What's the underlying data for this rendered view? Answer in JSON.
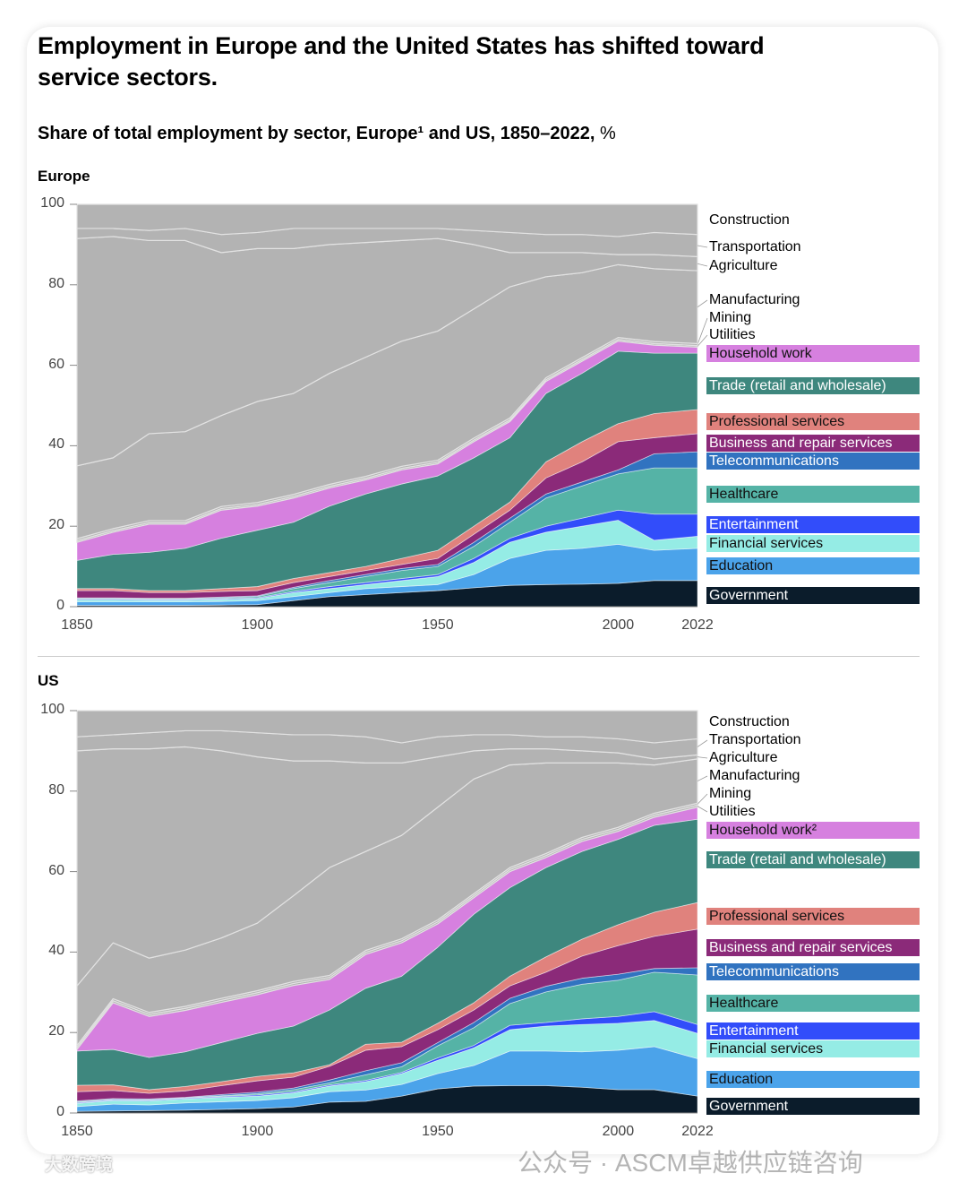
{
  "header": {
    "title": "Employment in Europe and the United States has shifted toward service sectors.",
    "subtitle": "Share of total employment by sector, Europe¹ and US, 1850–2022,",
    "unit": "%"
  },
  "watermarks": {
    "wechat": "公众号 · ASCM卓越供应链咨询",
    "corner": "大数跨境"
  },
  "chart_data": [
    {
      "type": "area",
      "stacked": true,
      "title": "Europe",
      "xlabel": "",
      "ylabel": "%",
      "ylim": [
        0,
        100
      ],
      "yticks": [
        "0",
        "20",
        "40",
        "60",
        "80",
        "100"
      ],
      "xticks": [
        "1850",
        "1900",
        "1950",
        "2000",
        "2022"
      ],
      "x": [
        1850,
        1860,
        1870,
        1880,
        1890,
        1900,
        1910,
        1920,
        1930,
        1940,
        1950,
        1960,
        1970,
        1980,
        1990,
        2000,
        2010,
        2022
      ],
      "value_mode": "cumulative_top",
      "series": [
        {
          "name": "Government",
          "color": "#0b1c2b",
          "cumulative_top": [
            0.3,
            0.3,
            0.3,
            0.3,
            0.4,
            0.5,
            1.5,
            2.5,
            3,
            3.5,
            4,
            4.7,
            5.3,
            5.5,
            5.6,
            5.8,
            6.5,
            6.5
          ]
        },
        {
          "name": "Education",
          "color": "#4ba3ea",
          "cumulative_top": [
            1.2,
            1.2,
            1.2,
            1.2,
            1.3,
            1.5,
            2.5,
            3.5,
            4.5,
            5,
            5.5,
            8,
            12,
            14,
            14.5,
            15.5,
            14,
            14.5
          ]
        },
        {
          "name": "Financial services",
          "color": "#95ece5",
          "cumulative_top": [
            1.7,
            1.7,
            1.6,
            1.6,
            1.8,
            2,
            3.5,
            4.5,
            5.5,
            6.5,
            7.5,
            11,
            16,
            18.5,
            20,
            21.5,
            16.5,
            17.5
          ]
        },
        {
          "name": "Entertainment",
          "color": "#324dfa",
          "cumulative_top": [
            1.9,
            1.9,
            1.8,
            1.8,
            2,
            2.2,
            3.8,
            5,
            6,
            7,
            8,
            12,
            17,
            20,
            22,
            24,
            23,
            23
          ]
        },
        {
          "name": "Healthcare",
          "color": "#55b3a6",
          "cumulative_top": [
            2.1,
            2.1,
            2,
            2,
            2.2,
            2.5,
            4.5,
            6,
            7.5,
            9,
            10,
            15,
            21,
            27,
            30,
            33,
            34.5,
            34.5
          ]
        },
        {
          "name": "Telecommunications",
          "color": "#3173c0",
          "cumulative_top": [
            2.2,
            2.2,
            2.1,
            2.1,
            2.4,
            2.7,
            4.8,
            6.5,
            8,
            9.5,
            10.5,
            16,
            22,
            28,
            31,
            34,
            38,
            38.5
          ]
        },
        {
          "name": "Business and repair services",
          "color": "#8b2a79",
          "cumulative_top": [
            4,
            4,
            3.5,
            3.5,
            3.8,
            4,
            6,
            7.5,
            9,
            10.5,
            12,
            18,
            24,
            32,
            36,
            41,
            42,
            43
          ]
        },
        {
          "name": "Professional services",
          "color": "#e0827d",
          "cumulative_top": [
            4.5,
            4.5,
            4,
            4,
            4.5,
            5,
            7,
            8.5,
            10,
            12,
            14,
            20,
            26,
            36,
            41,
            45.5,
            48,
            49
          ]
        },
        {
          "name": "Trade (retail and wholesale)",
          "color": "#3e877e",
          "cumulative_top": [
            11.5,
            13,
            13.5,
            14.5,
            17,
            19,
            21,
            25,
            28,
            30.5,
            32.5,
            37,
            42,
            53,
            58,
            63.5,
            63,
            63
          ]
        },
        {
          "name": "Household work",
          "color": "#d680df",
          "cumulative_top": [
            16,
            18.5,
            20.5,
            20.5,
            24,
            25,
            27,
            29.5,
            31.5,
            34,
            35.5,
            41,
            46,
            56,
            61,
            66,
            65,
            64.5
          ]
        },
        {
          "name": "Utilities",
          "color": "#b3b3b3",
          "cumulative_top": [
            16.4,
            18.9,
            20.9,
            20.9,
            24.4,
            25.4,
            27.4,
            29.9,
            31.9,
            34.4,
            35.9,
            41.4,
            46.4,
            56.4,
            61.4,
            66.4,
            65.4,
            64.9
          ]
        },
        {
          "name": "Mining",
          "color": "#b3b3b3",
          "cumulative_top": [
            16.9,
            19.4,
            21.4,
            21.4,
            24.9,
            25.9,
            27.9,
            30.4,
            32.4,
            34.9,
            36.4,
            41.9,
            46.9,
            56.9,
            61.9,
            66.9,
            65.9,
            65.4
          ]
        },
        {
          "name": "Manufacturing",
          "color": "#b3b3b3",
          "cumulative_top": [
            35,
            37,
            43,
            43.5,
            47.5,
            51,
            53,
            58,
            62,
            66,
            68.5,
            74,
            79.5,
            82,
            83,
            85,
            84,
            83.5
          ]
        },
        {
          "name": "Agriculture",
          "color": "#b3b3b3",
          "cumulative_top": [
            91.5,
            92,
            91,
            91,
            88,
            89,
            89,
            90,
            90.5,
            91,
            91.5,
            90,
            88,
            88,
            88,
            87.5,
            87.5,
            87
          ]
        },
        {
          "name": "Transportation",
          "color": "#b3b3b3",
          "cumulative_top": [
            94,
            94,
            93.5,
            94,
            92.5,
            93,
            94,
            94,
            94,
            94,
            94,
            93.5,
            93,
            92.5,
            92.5,
            92,
            93,
            92.5
          ]
        },
        {
          "name": "Construction",
          "color": "#b3b3b3",
          "cumulative_top": [
            100,
            100,
            100,
            100,
            100,
            100,
            100,
            100,
            100,
            100,
            100,
            100,
            100,
            100,
            100,
            100,
            100,
            100
          ]
        }
      ]
    },
    {
      "type": "area",
      "stacked": true,
      "title": "US",
      "xlabel": "",
      "ylabel": "%",
      "ylim": [
        0,
        100
      ],
      "yticks": [
        "0",
        "20",
        "40",
        "60",
        "80",
        "100"
      ],
      "xticks": [
        "1850",
        "1900",
        "1950",
        "2000",
        "2022"
      ],
      "x": [
        1850,
        1860,
        1870,
        1880,
        1890,
        1900,
        1910,
        1920,
        1930,
        1940,
        1950,
        1960,
        1970,
        1980,
        1990,
        2000,
        2010,
        2022
      ],
      "value_mode": "cumulative_top",
      "series": [
        {
          "name": "Government",
          "color": "#0b1c2b",
          "cumulative_top": [
            0.4,
            0.5,
            0.6,
            0.7,
            0.9,
            1.1,
            1.5,
            2.7,
            2.9,
            4.2,
            6,
            6.7,
            6.8,
            6.8,
            6.4,
            5.8,
            5.8,
            4.2
          ]
        },
        {
          "name": "Education",
          "color": "#4ba3ea",
          "cumulative_top": [
            1.6,
            2.2,
            2,
            2.5,
            2.8,
            3.1,
            3.8,
            5.3,
            5.7,
            7.1,
            9.8,
            11.8,
            15.4,
            15.4,
            15.2,
            15.6,
            16.5,
            13.5
          ]
        },
        {
          "name": "Financial services",
          "color": "#95ece5",
          "cumulative_top": [
            2.4,
            3.1,
            3,
            3.5,
            3.9,
            4.2,
            5,
            6.7,
            7.8,
            9.8,
            13.1,
            16.2,
            20.7,
            21.6,
            22,
            22.3,
            23,
            19.8
          ]
        },
        {
          "name": "Entertainment",
          "color": "#324dfa",
          "cumulative_top": [
            2.6,
            3.3,
            3.2,
            3.7,
            4.1,
            4.5,
            5.3,
            7,
            8.1,
            10.1,
            13.7,
            16.8,
            21.8,
            22.5,
            23.4,
            24,
            25.2,
            22
          ]
        },
        {
          "name": "Healthcare",
          "color": "#55b3a6",
          "cumulative_top": [
            2.8,
            3.4,
            3.3,
            3.8,
            4.3,
            4.8,
            5.8,
            7.5,
            9.5,
            11.5,
            16.7,
            21.2,
            27.2,
            30.1,
            32,
            33,
            35,
            34.3
          ]
        },
        {
          "name": "Telecommunications",
          "color": "#3173c0",
          "cumulative_top": [
            3,
            3.6,
            3.5,
            3.9,
            4.6,
            5.2,
            6.2,
            8.2,
            10.5,
            12.5,
            17.5,
            22.5,
            28.5,
            31.5,
            33.5,
            34.5,
            35.9,
            36.1
          ]
        },
        {
          "name": "Business and repair services",
          "color": "#8b2a79",
          "cumulative_top": [
            5.3,
            5.6,
            4.9,
            5.5,
            6.8,
            8,
            8.9,
            11.6,
            15.6,
            16.5,
            20.7,
            25.6,
            31.6,
            35,
            39,
            41.6,
            43.9,
            45.7
          ]
        },
        {
          "name": "Professional services",
          "color": "#e0827d",
          "cumulative_top": [
            6.9,
            7,
            5.8,
            6.6,
            7.8,
            9.1,
            10,
            12,
            17.1,
            17.6,
            22.3,
            27.4,
            34,
            38.8,
            43.2,
            46.8,
            49.9,
            52.3
          ]
        },
        {
          "name": "Trade (retail and wholesale)",
          "color": "#3e877e",
          "cumulative_top": [
            15.4,
            15.8,
            13.8,
            15.2,
            17.5,
            19.8,
            21.6,
            25.6,
            31,
            34,
            41.2,
            49.4,
            56,
            61,
            65,
            68,
            71.5,
            73
          ]
        },
        {
          "name": "Household work²",
          "color": "#d680df",
          "cumulative_top": [
            15.8,
            27.4,
            24,
            25.5,
            27.5,
            29.4,
            31.7,
            33.2,
            39.4,
            42.3,
            47,
            53.5,
            60,
            63.5,
            67.5,
            70,
            73.5,
            76
          ]
        },
        {
          "name": "Utilities",
          "color": "#b3b3b3",
          "cumulative_top": [
            16.3,
            27.9,
            24.5,
            26,
            28,
            29.9,
            32.2,
            33.7,
            39.9,
            42.8,
            47.5,
            54,
            60.5,
            64,
            68,
            70.5,
            74,
            76.5
          ]
        },
        {
          "name": "Mining",
          "color": "#b3b3b3",
          "cumulative_top": [
            16.8,
            28.4,
            25,
            26.5,
            28.5,
            30.4,
            32.7,
            34.2,
            40.4,
            43.3,
            48,
            54.5,
            61,
            64.5,
            68.5,
            71,
            74.5,
            77
          ]
        },
        {
          "name": "Manufacturing",
          "color": "#b3b3b3",
          "cumulative_top": [
            31.6,
            42.3,
            38.5,
            40.5,
            43.5,
            47.2,
            54,
            61,
            65,
            69,
            76,
            83,
            86.5,
            87,
            87,
            87,
            86.5,
            88
          ]
        },
        {
          "name": "Agriculture",
          "color": "#b3b3b3",
          "cumulative_top": [
            90,
            90.5,
            90.5,
            91,
            90,
            88.5,
            87.5,
            87.5,
            87,
            87,
            88.5,
            90,
            90.5,
            90.5,
            90,
            89.5,
            88,
            89
          ]
        },
        {
          "name": "Transportation",
          "color": "#b3b3b3",
          "cumulative_top": [
            93.5,
            94,
            94.5,
            95,
            95,
            94.5,
            94,
            94,
            93.5,
            92,
            93.5,
            94,
            94,
            93.5,
            93.5,
            93,
            92,
            93
          ]
        },
        {
          "name": "Construction",
          "color": "#b3b3b3",
          "cumulative_top": [
            100,
            100,
            100,
            100,
            100,
            100,
            100,
            100,
            100,
            100,
            100,
            100,
            100,
            100,
            100,
            100,
            100,
            100
          ]
        }
      ]
    }
  ]
}
